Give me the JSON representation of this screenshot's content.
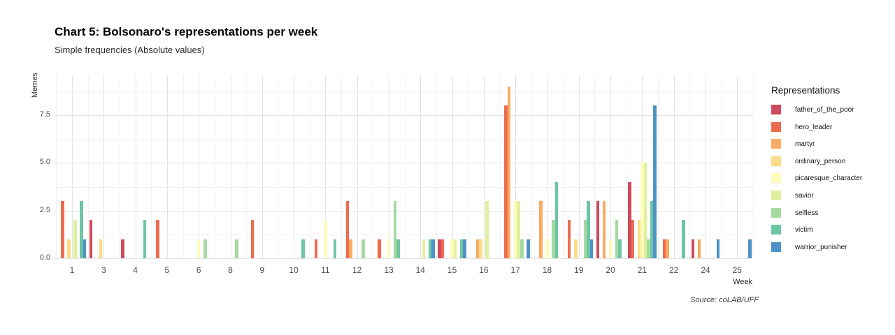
{
  "title": "Chart 5: Bolsonaro's representations per week",
  "subtitle": "Simple frequencies (Absolute values)",
  "source": "Source: coLAB/UFF",
  "axes": {
    "y_label": "Memes",
    "x_label": "Week",
    "y_ticks": [
      {
        "label": "0.0",
        "value": 0
      },
      {
        "label": "2.5",
        "value": 2.5
      },
      {
        "label": "5.0",
        "value": 5
      },
      {
        "label": "7.5",
        "value": 7.5
      }
    ],
    "y_minor": [
      1.25,
      3.75,
      6.25,
      8.75
    ]
  },
  "legend": {
    "title": "Representations"
  },
  "chart_data": {
    "type": "bar",
    "title": "Chart 5: Bolsonaro's representations per week",
    "subtitle": "Simple frequencies (Absolute values)",
    "xlabel": "Week",
    "ylabel": "Memes",
    "ylim": [
      0,
      9.6
    ],
    "grid": "on",
    "legend_position": "right",
    "categories": [
      1,
      3,
      4,
      5,
      6,
      8,
      9,
      10,
      11,
      12,
      13,
      14,
      15,
      16,
      17,
      18,
      19,
      20,
      21,
      22,
      24,
      25
    ],
    "series": [
      {
        "name": "father_of_the_poor",
        "color": "#d04a5d",
        "values": [
          0,
          2,
          1,
          0,
          0,
          0,
          0,
          0,
          0,
          0,
          0,
          0,
          1,
          0,
          0,
          0,
          0,
          3,
          4,
          0,
          1,
          0
        ]
      },
      {
        "name": "hero_leader",
        "color": "#ee6c4e",
        "values": [
          3,
          0,
          0,
          2,
          0,
          0,
          2,
          0,
          1,
          3,
          1,
          0,
          1,
          0,
          8,
          0,
          2,
          0,
          2,
          1,
          0,
          0
        ]
      },
      {
        "name": "martyr",
        "color": "#f9ab63",
        "values": [
          0,
          0,
          0,
          0,
          0,
          0,
          0,
          0,
          0,
          1,
          0,
          0,
          0,
          1,
          9,
          3,
          0,
          3,
          0,
          1,
          1,
          0
        ]
      },
      {
        "name": "ordinary_person",
        "color": "#fcdc89",
        "values": [
          1,
          1,
          0,
          0,
          0,
          0,
          0,
          0,
          0,
          0,
          0,
          0,
          0,
          1,
          0,
          0,
          1,
          0,
          2,
          0,
          0,
          0
        ]
      },
      {
        "name": "picaresque_character",
        "color": "#fbfcbd",
        "values": [
          0,
          0,
          0,
          0,
          1,
          0,
          0,
          0,
          2,
          0,
          1,
          0,
          1,
          0,
          3,
          1,
          0,
          1,
          5,
          0,
          0,
          0
        ]
      },
      {
        "name": "savior",
        "color": "#dff09f",
        "values": [
          2,
          0,
          0,
          0,
          0,
          0,
          0,
          0,
          0,
          0,
          0,
          1,
          1,
          3,
          3,
          0,
          0,
          0,
          5,
          0,
          0,
          0
        ]
      },
      {
        "name": "selfless",
        "color": "#a7d9a2",
        "values": [
          0,
          0,
          0,
          0,
          1,
          1,
          0,
          0,
          0,
          1,
          3,
          0,
          0,
          0,
          1,
          2,
          2,
          2,
          1,
          0,
          0,
          0
        ]
      },
      {
        "name": "victim",
        "color": "#6dc5a3",
        "values": [
          3,
          0,
          2,
          0,
          0,
          0,
          0,
          1,
          1,
          0,
          1,
          1,
          1,
          0,
          0,
          4,
          3,
          1,
          3,
          2,
          0,
          0
        ]
      },
      {
        "name": "warrior_punisher",
        "color": "#4e92c6",
        "values": [
          1,
          0,
          0,
          0,
          0,
          0,
          0,
          0,
          0,
          0,
          0,
          1,
          1,
          0,
          1,
          0,
          1,
          0,
          8,
          0,
          1,
          1
        ]
      }
    ]
  }
}
